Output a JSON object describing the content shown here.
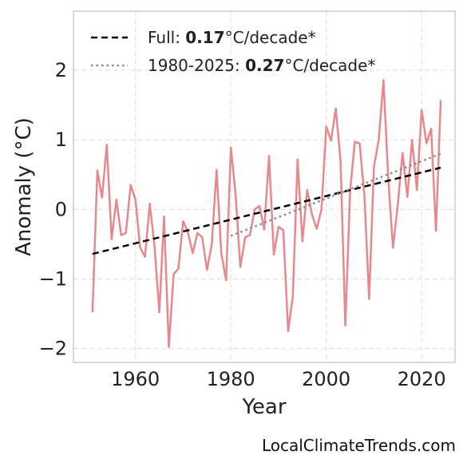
{
  "chart_data": {
    "type": "line",
    "xlabel": "Year",
    "ylabel": "Anomaly (°C)",
    "xlim": [
      1947,
      2027
    ],
    "ylim": [
      -2.2,
      2.85
    ],
    "xticks": [
      1960,
      1980,
      2000,
      2020
    ],
    "yticks": [
      -2,
      -1,
      0,
      1,
      2
    ],
    "ytick_labels": [
      "−2",
      "−1",
      "0",
      "1",
      "2"
    ],
    "grid": true,
    "legend_position": "top-left",
    "series": [
      {
        "x": [
          1951,
          1952,
          1953,
          1954,
          1955,
          1956,
          1957,
          1958,
          1959,
          1960,
          1961,
          1962,
          1963,
          1964,
          1965,
          1966,
          1967,
          1968,
          1969,
          1970,
          1971,
          1972,
          1973,
          1974,
          1975,
          1976,
          1977,
          1978,
          1979,
          1980,
          1981,
          1982,
          1983,
          1984,
          1985,
          1986,
          1987,
          1988,
          1989,
          1990,
          1991,
          1992,
          1993,
          1994,
          1995,
          1996,
          1997,
          1998,
          1999,
          2000,
          2001,
          2002,
          2003,
          2004,
          2005,
          2006,
          2007,
          2008,
          2009,
          2010,
          2011,
          2012,
          2013,
          2014,
          2015,
          2016,
          2017,
          2018,
          2019,
          2020,
          2021,
          2022,
          2023,
          2024
        ],
        "values": [
          -1.48,
          0.56,
          0.17,
          0.93,
          -0.43,
          0.14,
          -0.37,
          -0.34,
          0.35,
          0.14,
          -0.55,
          -0.68,
          0.08,
          -0.53,
          -1.48,
          -0.1,
          -1.98,
          -0.93,
          -0.85,
          -0.17,
          -0.33,
          -0.63,
          -0.34,
          -0.4,
          -0.87,
          -0.5,
          0.57,
          -0.63,
          -1.02,
          0.89,
          0.22,
          -0.83,
          -0.4,
          -0.37,
          0.0,
          0.05,
          -0.29,
          0.77,
          -0.65,
          -0.25,
          -0.3,
          -1.75,
          -1.25,
          0.72,
          -0.46,
          0.28,
          -0.07,
          -0.28,
          0.0,
          1.19,
          0.99,
          1.45,
          0.7,
          -1.67,
          0.27,
          0.97,
          0.95,
          0.2,
          -1.29,
          0.61,
          1.0,
          1.86,
          0.45,
          -0.55,
          0.07,
          0.81,
          0.18,
          1.0,
          0.28,
          1.43,
          0.95,
          1.16,
          -0.31,
          1.57
        ],
        "color": "#e8888c"
      }
    ],
    "trends": [
      {
        "label_prefix": "Full: ",
        "label_value": "0.17",
        "label_suffix": "°C/decade*",
        "x": [
          1951,
          2024
        ],
        "y": [
          -0.64,
          0.6
        ],
        "color": "#000000",
        "style": "dashed"
      },
      {
        "label_prefix": "1980-2025: ",
        "label_value": "0.27",
        "label_suffix": "°C/decade*",
        "x": [
          1980,
          2024
        ],
        "y": [
          -0.38,
          0.8
        ],
        "color": "#8a8a8a",
        "style": "dotted"
      }
    ]
  },
  "watermark": "LocalClimateTrends.com"
}
